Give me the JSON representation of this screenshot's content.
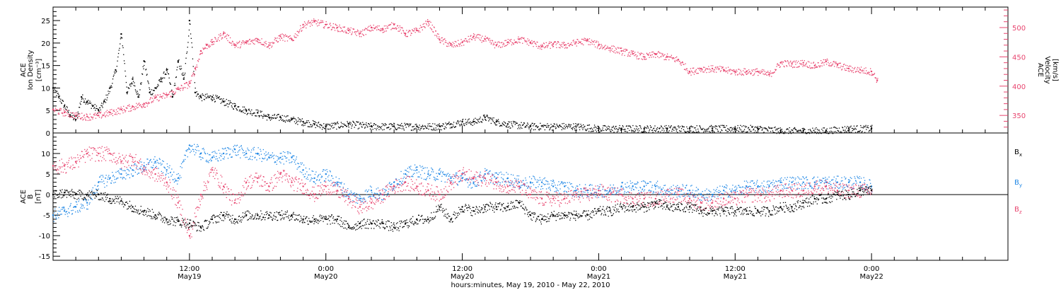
{
  "colors": {
    "black": "#000000",
    "red": "#e8456f",
    "blue": "#1f87e5"
  },
  "x_axis": {
    "title": "hours:minutes, May 19, 2010 - May 22, 2010",
    "start_hour": 0,
    "end_hour": 84,
    "ticks": [
      {
        "hour": 12,
        "line1": "12:00",
        "line2": "May19"
      },
      {
        "hour": 24,
        "line1": "0:00",
        "line2": "May20"
      },
      {
        "hour": 36,
        "line1": "12:00",
        "line2": "May20"
      },
      {
        "hour": 48,
        "line1": "0:00",
        "line2": "May21"
      },
      {
        "hour": 60,
        "line1": "12:00",
        "line2": "May21"
      },
      {
        "hour": 72,
        "line1": "0:00",
        "line2": "May22"
      }
    ]
  },
  "chart_data": [
    {
      "type": "scatter",
      "panel": "top",
      "xlabel": "hours:minutes, May 19, 2010 - May 22, 2010",
      "left_axis": {
        "label_lines": [
          "ACE",
          "Ion Density",
          "[cm⁻³]"
        ],
        "ylim": [
          0,
          28
        ],
        "ticks": [
          0,
          5,
          10,
          15,
          20,
          25
        ]
      },
      "right_axis": {
        "label_lines": [
          "ACE",
          "Velocity",
          "[km/s]"
        ],
        "ylim": [
          320,
          535
        ],
        "ticks": [
          350,
          400,
          450,
          500
        ]
      },
      "series": [
        {
          "name": "Ion Density",
          "axis": "left",
          "color": "black",
          "x": [
            0,
            0.5,
            1,
            1.5,
            2,
            2.5,
            3,
            3.5,
            4,
            4.5,
            5,
            5.5,
            6,
            6.5,
            7,
            7.5,
            8,
            8.5,
            9,
            9.5,
            10,
            10.5,
            11,
            11.5,
            12,
            12.5,
            13,
            14,
            15,
            16,
            17,
            18,
            19,
            20,
            21,
            22,
            23,
            24,
            26,
            28,
            30,
            32,
            34,
            35,
            36,
            37,
            38,
            39,
            40,
            42,
            44,
            46,
            48,
            50,
            52,
            54,
            56,
            58,
            60,
            62,
            64,
            66,
            68,
            70,
            72
          ],
          "values": [
            10,
            8,
            6,
            4,
            3,
            8,
            7,
            6,
            5,
            7,
            10,
            14,
            22,
            9,
            12,
            8,
            16,
            9,
            10,
            12,
            14,
            8,
            16,
            12,
            25,
            9,
            8,
            8,
            7,
            6,
            5,
            4.5,
            3.5,
            3.5,
            3,
            2.5,
            2,
            1.5,
            2,
            1.5,
            1.5,
            1.5,
            1.5,
            2,
            2.5,
            2.5,
            3.5,
            2.5,
            2,
            1.5,
            1.5,
            1.5,
            1,
            1,
            1,
            1,
            1,
            1,
            1,
            1,
            0.5,
            0.5,
            0.5,
            1,
            1
          ]
        },
        {
          "name": "Velocity",
          "axis": "right",
          "color": "red",
          "x": [
            0,
            1,
            2,
            3,
            4,
            5,
            6,
            7,
            8,
            9,
            10,
            11,
            12,
            12.5,
            13,
            13.5,
            14,
            15,
            16,
            17,
            18,
            19,
            20,
            21,
            22,
            23,
            24,
            25,
            26,
            27,
            28,
            29,
            30,
            31,
            32,
            33,
            34,
            35,
            36,
            37,
            38,
            39,
            40,
            41,
            42,
            43,
            44,
            45,
            46,
            47,
            48,
            49,
            50,
            51,
            52,
            53,
            54,
            55,
            56,
            57,
            58,
            59,
            60,
            61,
            62,
            63,
            64,
            65,
            66,
            67,
            68,
            69,
            70,
            71,
            72,
            72.5
          ],
          "values": [
            360,
            355,
            350,
            348,
            350,
            355,
            360,
            365,
            370,
            380,
            385,
            395,
            405,
            430,
            460,
            470,
            475,
            490,
            470,
            475,
            480,
            470,
            485,
            480,
            505,
            510,
            505,
            500,
            495,
            490,
            500,
            498,
            505,
            490,
            495,
            510,
            480,
            470,
            475,
            485,
            480,
            470,
            475,
            480,
            475,
            468,
            472,
            470,
            475,
            478,
            470,
            465,
            460,
            455,
            450,
            455,
            450,
            445,
            425,
            430,
            430,
            428,
            425,
            425,
            425,
            420,
            440,
            438,
            440,
            435,
            442,
            436,
            430,
            428,
            425,
            410
          ]
        }
      ]
    },
    {
      "type": "scatter",
      "panel": "bottom",
      "left_axis": {
        "label_lines": [
          "ACE",
          "B",
          "[nT]"
        ],
        "ylim": [
          -16,
          15
        ],
        "ticks": [
          -15,
          -10,
          -5,
          0,
          5,
          10
        ]
      },
      "legend": [
        "B_x",
        "B_y",
        "B_z"
      ],
      "zero_line": true,
      "series": [
        {
          "name": "Bx",
          "color": "black",
          "x": [
            0,
            1,
            2,
            3,
            4,
            5,
            6,
            7,
            8,
            9,
            10,
            11,
            12,
            13,
            14,
            15,
            16,
            17,
            18,
            19,
            20,
            21,
            22,
            23,
            24,
            25,
            26,
            27,
            28,
            29,
            30,
            31,
            32,
            33,
            34,
            35,
            36,
            37,
            38,
            39,
            40,
            41,
            42,
            43,
            44,
            45,
            46,
            47,
            48,
            49,
            50,
            51,
            52,
            53,
            54,
            55,
            56,
            57,
            58,
            59,
            60,
            61,
            62,
            63,
            64,
            65,
            66,
            67,
            68,
            69,
            70,
            71,
            72
          ],
          "values": [
            0,
            0.5,
            0,
            0,
            0,
            -1,
            -1.5,
            -3,
            -4,
            -5,
            -6,
            -6.5,
            -7,
            -8,
            -6,
            -5,
            -6,
            -5,
            -5,
            -5,
            -5,
            -5,
            -6,
            -6,
            -6,
            -6,
            -8,
            -7,
            -7,
            -7,
            -8,
            -7,
            -6,
            -6,
            -3,
            -6,
            -3,
            -4,
            -3,
            -3,
            -3,
            -2,
            -5,
            -6,
            -5,
            -5,
            -5,
            -5,
            -4,
            -4,
            -3,
            -3,
            -3,
            -2,
            -3,
            -3,
            -3,
            -4,
            -4,
            -4,
            -4,
            -4,
            -4,
            -4,
            -3,
            -3,
            -2,
            -1,
            -1,
            0,
            0,
            1,
            1
          ]
        },
        {
          "name": "By",
          "color": "blue",
          "x": [
            0,
            1,
            2,
            3,
            4,
            5,
            6,
            7,
            8,
            9,
            10,
            11,
            12,
            13,
            14,
            15,
            16,
            17,
            18,
            19,
            20,
            21,
            22,
            23,
            24,
            25,
            26,
            27,
            28,
            29,
            30,
            31,
            32,
            33,
            34,
            35,
            36,
            37,
            38,
            39,
            40,
            41,
            42,
            43,
            44,
            45,
            46,
            47,
            48,
            49,
            50,
            51,
            52,
            53,
            54,
            55,
            56,
            57,
            58,
            59,
            60,
            61,
            62,
            63,
            64,
            65,
            66,
            67,
            68,
            69,
            70,
            71,
            72
          ],
          "values": [
            -5,
            -4,
            -3,
            -2,
            3,
            4,
            5,
            6,
            7,
            8,
            6,
            4,
            12,
            10,
            9,
            10,
            11,
            10,
            10,
            9,
            9,
            9,
            6,
            4,
            5,
            3,
            0,
            -1,
            1,
            0,
            3,
            5,
            6,
            5,
            5,
            4,
            4,
            3,
            5,
            4,
            4,
            3,
            3,
            3,
            2,
            2,
            1,
            1,
            1,
            1,
            2,
            2,
            2,
            2,
            1,
            1,
            1,
            0,
            0,
            1,
            1,
            2,
            2,
            2,
            3,
            3,
            3,
            3,
            3,
            3,
            3,
            3,
            2
          ]
        },
        {
          "name": "Bz",
          "color": "red",
          "x": [
            0,
            1,
            2,
            3,
            4,
            5,
            6,
            7,
            8,
            9,
            10,
            11,
            12,
            13,
            14,
            15,
            16,
            17,
            18,
            19,
            20,
            21,
            22,
            23,
            24,
            25,
            26,
            27,
            28,
            29,
            30,
            31,
            32,
            33,
            34,
            35,
            36,
            37,
            38,
            39,
            40,
            41,
            42,
            43,
            44,
            45,
            46,
            47,
            48,
            49,
            50,
            51,
            52,
            53,
            54,
            55,
            56,
            57,
            58,
            59,
            60,
            61,
            62,
            63,
            64,
            65,
            66,
            67,
            68,
            69,
            70,
            71,
            72
          ],
          "values": [
            7,
            7,
            8,
            10,
            10,
            10,
            8,
            9,
            6,
            5,
            3,
            -2,
            -10,
            0,
            6,
            2,
            -2,
            3,
            4,
            2,
            5,
            3,
            2,
            0,
            2,
            1,
            -1,
            -3,
            -2,
            0,
            2,
            3,
            2,
            1,
            0,
            3,
            5,
            4,
            4,
            3,
            2,
            2,
            0,
            -1,
            -1,
            -1,
            0,
            0,
            1,
            0,
            0,
            -1,
            -1,
            -1,
            0,
            0,
            -1,
            -2,
            -2,
            -1,
            -1,
            0,
            0,
            0,
            1,
            1,
            1,
            2,
            2,
            1,
            1,
            1,
            1
          ]
        }
      ]
    }
  ]
}
